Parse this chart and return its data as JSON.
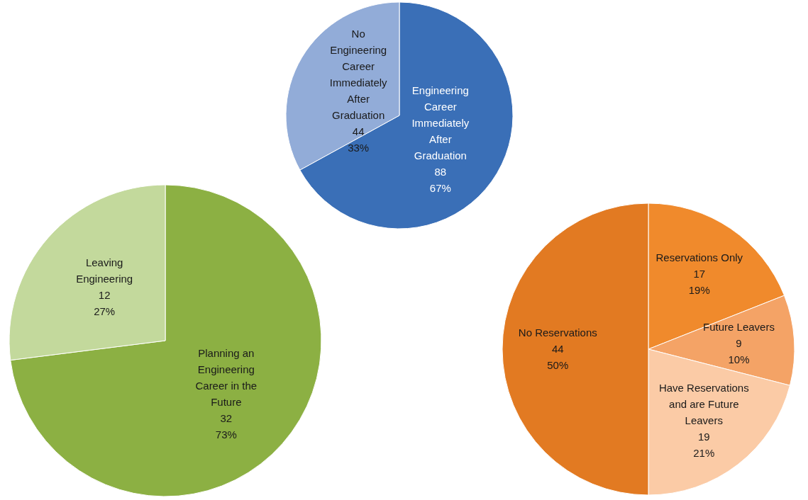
{
  "chart_data": [
    {
      "type": "pie",
      "categories": [
        "Engineering Career Immediately After Graduation",
        "No Engineering Career Immediately After Graduation"
      ],
      "values": [
        67,
        33
      ],
      "colors": [
        "#3a6fb7",
        "#92acd8"
      ],
      "value_labels": [
        "88\n67%",
        "44\n33%"
      ]
    },
    {
      "type": "pie",
      "categories": [
        "Planning an Engineering Career in the Future",
        "Leaving Engineering"
      ],
      "values": [
        73,
        27
      ],
      "colors": [
        "#8cb043",
        "#c3d99c"
      ],
      "value_labels": [
        "32\n73%",
        "12\n27%"
      ]
    },
    {
      "type": "pie",
      "categories": [
        "Reservations Only",
        "Future Leavers",
        "Have Reservations and are Future Leavers",
        "No Reservations"
      ],
      "values": [
        19,
        10,
        21,
        50
      ],
      "colors": [
        "#f08a2c",
        "#f4a366",
        "#fbcba6",
        "#e27a22"
      ],
      "value_labels": [
        "17\n19%",
        "9\n10%",
        "19\n21%",
        "44\n50%"
      ]
    }
  ]
}
